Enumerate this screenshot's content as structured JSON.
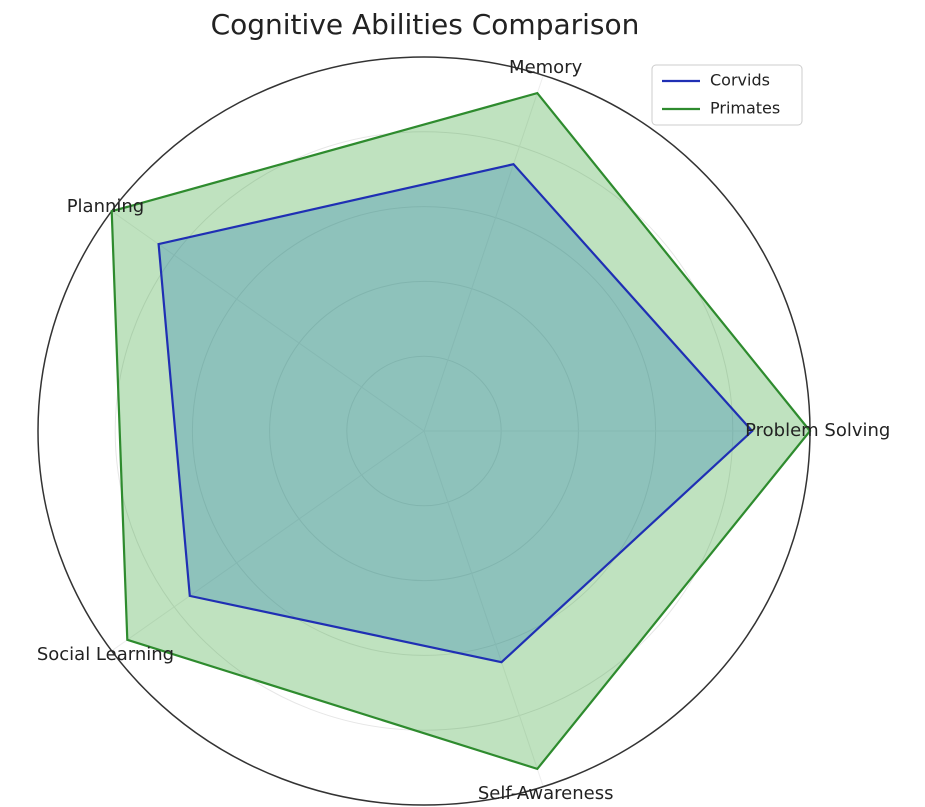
{
  "chart_data": {
    "type": "radar",
    "title": "Cognitive Abilities Comparison",
    "categories": [
      "Problem Solving",
      "Memory",
      "Planning",
      "Social Learning",
      "Self-Awareness"
    ],
    "series": [
      {
        "name": "Corvids",
        "color": "#1f2fb4",
        "fill": "#1f77b4",
        "values": [
          8.5,
          7.5,
          8.5,
          7.5,
          6.5
        ]
      },
      {
        "name": "Primates",
        "color": "#2e8b2e",
        "fill": "#2ca02c",
        "values": [
          10,
          9.5,
          10,
          9.5,
          9.5
        ]
      }
    ],
    "ylim": [
      0,
      10
    ],
    "yticks": [
      2,
      4,
      6,
      8
    ],
    "grid": true,
    "legend": "upper right"
  }
}
